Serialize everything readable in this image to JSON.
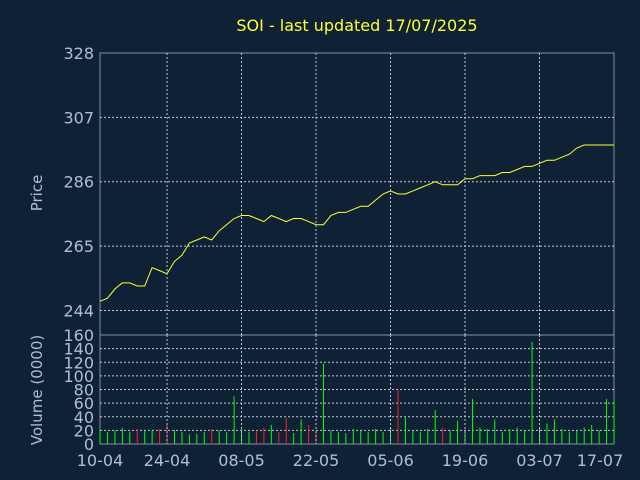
{
  "chart_data": [
    {
      "type": "line",
      "title": "SOI - last updated 17/07/2025",
      "ylabel": "Price",
      "ylim": [
        236,
        328
      ],
      "yticks": [
        244,
        265,
        286,
        307,
        328
      ],
      "x_tick_labels": [
        "10-04",
        "24-04",
        "08-05",
        "22-05",
        "05-06",
        "19-06",
        "03-07",
        "17-07"
      ],
      "x": [
        "10-04",
        "11-04",
        "14-04",
        "15-04",
        "16-04",
        "17-04",
        "18-04",
        "22-04",
        "23-04",
        "24-04",
        "25-04",
        "28-04",
        "29-04",
        "30-04",
        "01-05",
        "02-05",
        "05-05",
        "06-05",
        "07-05",
        "08-05",
        "09-05",
        "12-05",
        "13-05",
        "14-05",
        "15-05",
        "16-05",
        "19-05",
        "20-05",
        "21-05",
        "22-05",
        "23-05",
        "26-05",
        "27-05",
        "28-05",
        "29-05",
        "30-05",
        "02-06",
        "03-06",
        "04-06",
        "05-06",
        "06-06",
        "09-06",
        "10-06",
        "11-06",
        "12-06",
        "13-06",
        "16-06",
        "17-06",
        "18-06",
        "19-06",
        "20-06",
        "23-06",
        "24-06",
        "25-06",
        "26-06",
        "27-06",
        "30-06",
        "01-07",
        "02-07",
        "03-07",
        "04-07",
        "07-07",
        "08-07",
        "09-07",
        "10-07",
        "11-07",
        "14-07",
        "15-07",
        "16-07",
        "17-07"
      ],
      "values": [
        247,
        248,
        251,
        253,
        253,
        252,
        252,
        258,
        257,
        256,
        260,
        262,
        266,
        267,
        268,
        267,
        270,
        272,
        274,
        275,
        275,
        274,
        273,
        275,
        274,
        273,
        274,
        274,
        273,
        272,
        272,
        275,
        276,
        276,
        277,
        278,
        278,
        280,
        282,
        283,
        282,
        282,
        283,
        284,
        285,
        286,
        285,
        285,
        285,
        287,
        287,
        288,
        288,
        288,
        289,
        289,
        290,
        291,
        291,
        292,
        293,
        293,
        294,
        295,
        297,
        298,
        298,
        298,
        298,
        298
      ],
      "color": "#ffff33"
    },
    {
      "type": "bar",
      "ylabel": "Volume (0000)",
      "ylim": [
        0,
        160
      ],
      "yticks": [
        0,
        20,
        40,
        60,
        80,
        100,
        120,
        140,
        160
      ],
      "x_tick_labels": [
        "10-04",
        "24-04",
        "08-05",
        "22-05",
        "05-06",
        "19-06",
        "03-07",
        "17-07"
      ],
      "values": [
        22,
        18,
        20,
        24,
        18,
        22,
        20,
        20,
        22,
        30,
        20,
        18,
        14,
        15,
        18,
        22,
        20,
        18,
        70,
        22,
        18,
        20,
        24,
        28,
        18,
        38,
        16,
        36,
        28,
        16,
        118,
        20,
        18,
        16,
        22,
        20,
        18,
        22,
        18,
        24,
        80,
        40,
        20,
        18,
        22,
        50,
        24,
        20,
        34,
        18,
        66,
        24,
        22,
        36,
        18,
        22,
        24,
        20,
        150,
        22,
        30,
        36,
        22,
        18,
        20,
        24,
        28,
        20,
        66,
        62
      ],
      "up_color": "#00ff00",
      "down_color": "#ff2020"
    }
  ],
  "colors": {
    "background": "#0f2235",
    "axis_text": "#a8c0d8",
    "title": "#ffff33",
    "grid": "#c0c8d0"
  }
}
